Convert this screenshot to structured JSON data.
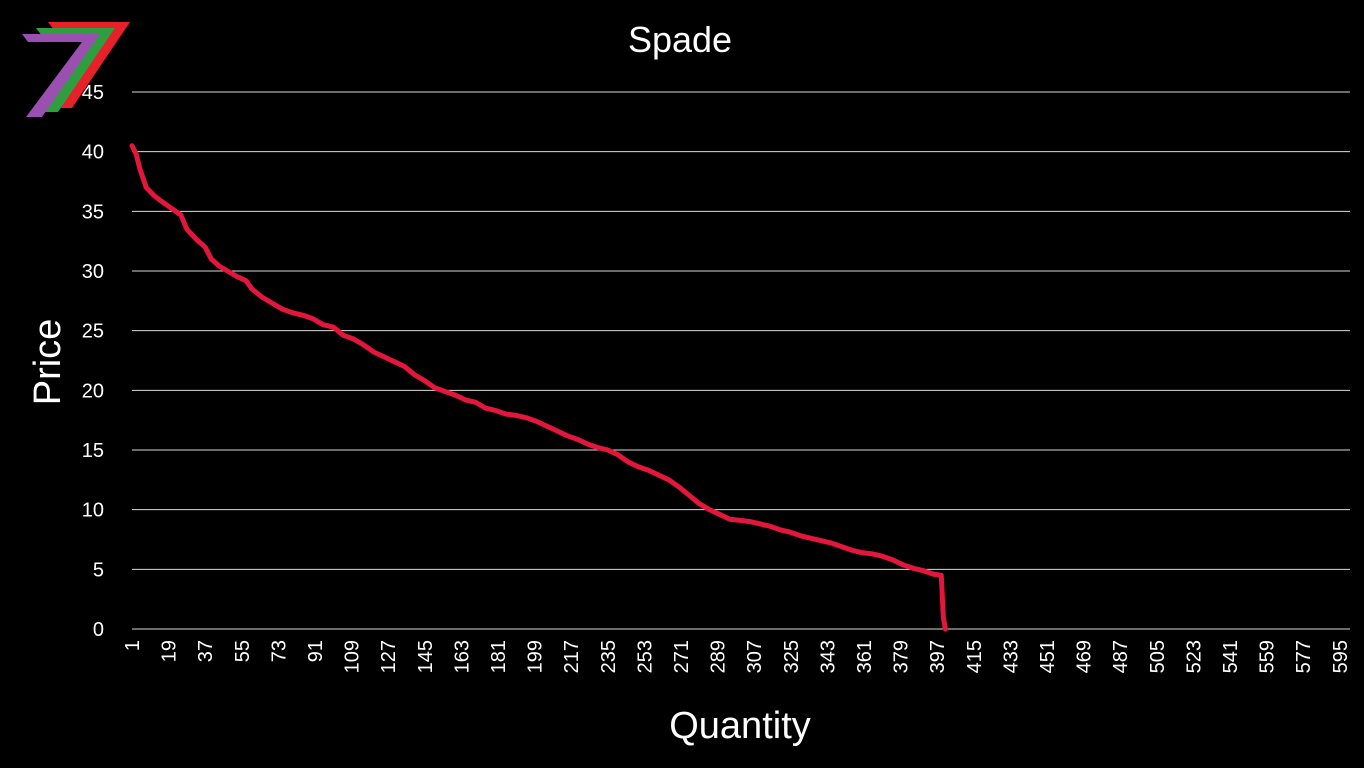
{
  "logo": {
    "name": "7-logo",
    "colors": [
      "#9b4fb0",
      "#2e9e3e",
      "#e8202a"
    ]
  },
  "chart_data": {
    "type": "line",
    "title": "Spade",
    "xlabel": "Quantity",
    "ylabel": "Price",
    "ylim": [
      0,
      45
    ],
    "xlim": [
      1,
      600
    ],
    "yticks": [
      "0",
      "5",
      "10",
      "15",
      "20",
      "25",
      "30",
      "35",
      "40",
      "45"
    ],
    "xticks": [
      "1",
      "19",
      "37",
      "55",
      "73",
      "91",
      "109",
      "127",
      "145",
      "163",
      "181",
      "199",
      "217",
      "235",
      "253",
      "271",
      "289",
      "307",
      "325",
      "343",
      "361",
      "379",
      "397",
      "415",
      "433",
      "451",
      "469",
      "487",
      "505",
      "523",
      "541",
      "559",
      "577",
      "595"
    ],
    "grid": true,
    "legend": "none",
    "series": [
      {
        "color": "#e3163c",
        "x": [
          1,
          3,
          5,
          8,
          12,
          15,
          20,
          25,
          28,
          33,
          37,
          40,
          44,
          48,
          53,
          57,
          60,
          65,
          70,
          75,
          80,
          85,
          90,
          95,
          100,
          105,
          110,
          115,
          120,
          125,
          130,
          135,
          140,
          145,
          150,
          155,
          160,
          165,
          170,
          175,
          180,
          185,
          190,
          195,
          200,
          205,
          210,
          215,
          220,
          225,
          230,
          235,
          240,
          245,
          250,
          255,
          260,
          265,
          270,
          275,
          280,
          285,
          290,
          295,
          300,
          305,
          310,
          315,
          320,
          325,
          330,
          335,
          340,
          345,
          350,
          355,
          360,
          365,
          370,
          375,
          380,
          385,
          390,
          395,
          399,
          400,
          401
        ],
        "y": [
          40.5,
          39.8,
          38.5,
          37.0,
          36.3,
          35.9,
          35.3,
          34.7,
          33.5,
          32.6,
          32.0,
          31.0,
          30.4,
          30.0,
          29.5,
          29.2,
          28.5,
          27.8,
          27.3,
          26.8,
          26.5,
          26.3,
          26.0,
          25.5,
          25.3,
          24.6,
          24.3,
          23.8,
          23.2,
          22.8,
          22.4,
          22.0,
          21.3,
          20.8,
          20.2,
          19.9,
          19.6,
          19.2,
          19.0,
          18.5,
          18.3,
          18.0,
          17.9,
          17.7,
          17.4,
          17.0,
          16.6,
          16.2,
          15.9,
          15.5,
          15.2,
          15.0,
          14.6,
          14.0,
          13.6,
          13.3,
          12.9,
          12.5,
          11.9,
          11.2,
          10.5,
          10.0,
          9.6,
          9.2,
          9.1,
          9.0,
          8.8,
          8.6,
          8.3,
          8.1,
          7.8,
          7.6,
          7.4,
          7.2,
          6.9,
          6.6,
          6.4,
          6.3,
          6.1,
          5.8,
          5.4,
          5.1,
          4.9,
          4.6,
          4.5,
          1.0,
          0.0
        ]
      }
    ]
  }
}
